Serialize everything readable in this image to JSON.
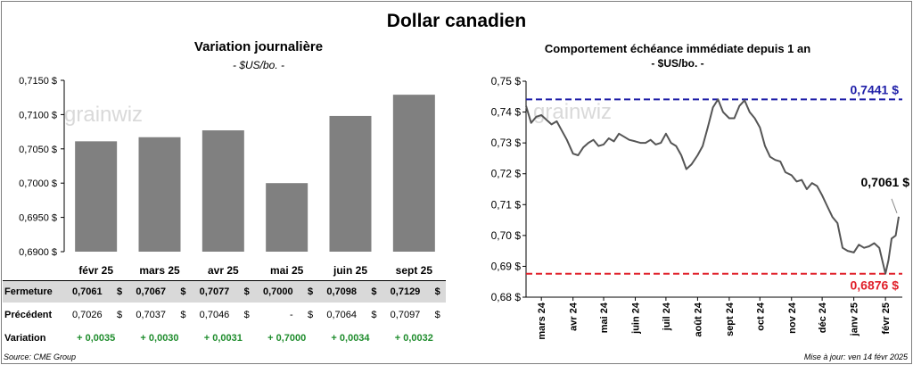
{
  "main_title": "Dollar canadien",
  "left": {
    "title": "Variation journalière",
    "unit": "- $US/bo. -",
    "watermark": "grainwiz",
    "table": {
      "rows": [
        {
          "label": "Fermeture",
          "values": [
            "0,7061",
            "0,7067",
            "0,7077",
            "0,7000",
            "0,7098",
            "0,7129"
          ],
          "style": "bold"
        },
        {
          "label": "Précédent",
          "values": [
            "0,7026",
            "0,7037",
            "0,7046",
            "-",
            "0,7064",
            "0,7097"
          ],
          "style": "normal"
        },
        {
          "label": "Variation",
          "values": [
            "+ 0,0035",
            "+ 0,0030",
            "+ 0,0031",
            "+ 0,7000",
            "+ 0,0034",
            "+ 0,0032"
          ],
          "style": "green"
        }
      ],
      "dollar": "$"
    }
  },
  "right": {
    "title": "Comportement échéance immédiate depuis 1 an",
    "unit": "- $US/bo. -",
    "watermark": "grainwiz",
    "max_label": "0,7441 $",
    "min_label": "0,6876 $",
    "last_label": "0,7061 $"
  },
  "footer": {
    "source": "Source: CME Group",
    "updated": "Mise à jour: ven 14 févr 2025"
  },
  "chart_data": [
    {
      "type": "bar",
      "title": "Variation journalière",
      "unit": "- $US/bo. -",
      "categories": [
        "févr 25",
        "mars 25",
        "avr 25",
        "mai 25",
        "juin 25",
        "sept 25"
      ],
      "values": [
        0.7061,
        0.7067,
        0.7077,
        0.7,
        0.7098,
        0.7129
      ],
      "ylim": [
        0.69,
        0.715
      ],
      "yticks": [
        0.69,
        0.695,
        0.7,
        0.705,
        0.71,
        0.715
      ],
      "ytick_labels": [
        "0,6900 $",
        "0,6950 $",
        "0,7000 $",
        "0,7050 $",
        "0,7100 $",
        "0,7150 $"
      ],
      "grid": false,
      "color": "#808080"
    },
    {
      "type": "line",
      "title": "Comportement échéance immédiate depuis 1 an",
      "unit": "- $US/bo. -",
      "ylim": [
        0.68,
        0.75
      ],
      "yticks": [
        0.68,
        0.69,
        0.7,
        0.71,
        0.72,
        0.73,
        0.74,
        0.75
      ],
      "ytick_labels": [
        "0,68 $",
        "0,69 $",
        "0,70 $",
        "0,71 $",
        "0,72 $",
        "0,73 $",
        "0,74 $",
        "0,75 $"
      ],
      "xtick_labels": [
        "mars 24",
        "avr 24",
        "mai 24",
        "juin 24",
        "juil 24",
        "août 24",
        "sept 24",
        "oct 24",
        "nov 24",
        "déc 24",
        "janv 25",
        "févr 25"
      ],
      "x": [
        "2024-02-15",
        "2024-02-20",
        "2024-02-25",
        "2024-03-01",
        "2024-03-06",
        "2024-03-11",
        "2024-03-16",
        "2024-03-21",
        "2024-03-26",
        "2024-04-01",
        "2024-04-06",
        "2024-04-11",
        "2024-04-16",
        "2024-04-21",
        "2024-04-26",
        "2024-05-01",
        "2024-05-06",
        "2024-05-11",
        "2024-05-16",
        "2024-05-21",
        "2024-05-26",
        "2024-06-01",
        "2024-06-06",
        "2024-06-11",
        "2024-06-16",
        "2024-06-21",
        "2024-06-26",
        "2024-07-01",
        "2024-07-06",
        "2024-07-11",
        "2024-07-16",
        "2024-07-21",
        "2024-07-26",
        "2024-08-01",
        "2024-08-06",
        "2024-08-11",
        "2024-08-16",
        "2024-08-21",
        "2024-08-26",
        "2024-09-01",
        "2024-09-06",
        "2024-09-11",
        "2024-09-16",
        "2024-09-21",
        "2024-09-26",
        "2024-10-01",
        "2024-10-06",
        "2024-10-11",
        "2024-10-16",
        "2024-10-21",
        "2024-10-26",
        "2024-11-01",
        "2024-11-06",
        "2024-11-11",
        "2024-11-16",
        "2024-11-21",
        "2024-11-26",
        "2024-12-01",
        "2024-12-06",
        "2024-12-11",
        "2024-12-16",
        "2024-12-21",
        "2024-12-26",
        "2025-01-01",
        "2025-01-06",
        "2025-01-11",
        "2025-01-16",
        "2025-01-21",
        "2025-01-26",
        "2025-02-01",
        "2025-02-04",
        "2025-02-07",
        "2025-02-11",
        "2025-02-14"
      ],
      "y": [
        0.742,
        0.7365,
        0.7385,
        0.739,
        0.7375,
        0.736,
        0.737,
        0.734,
        0.731,
        0.7265,
        0.726,
        0.7285,
        0.73,
        0.731,
        0.729,
        0.7295,
        0.7315,
        0.7305,
        0.733,
        0.732,
        0.731,
        0.7305,
        0.73,
        0.73,
        0.731,
        0.7295,
        0.73,
        0.733,
        0.73,
        0.729,
        0.726,
        0.7215,
        0.723,
        0.726,
        0.729,
        0.735,
        0.7415,
        0.7441,
        0.74,
        0.738,
        0.738,
        0.742,
        0.7438,
        0.74,
        0.738,
        0.735,
        0.729,
        0.7255,
        0.7245,
        0.724,
        0.7205,
        0.7195,
        0.7175,
        0.718,
        0.715,
        0.717,
        0.716,
        0.713,
        0.7095,
        0.706,
        0.704,
        0.696,
        0.695,
        0.6945,
        0.697,
        0.696,
        0.6965,
        0.6975,
        0.696,
        0.6876,
        0.692,
        0.699,
        0.7,
        0.7061
      ],
      "max_level": 0.7441,
      "min_level": 0.6876,
      "last_value": 0.7061,
      "grid": false,
      "colors": {
        "line": "#555555",
        "max": "#1f1fa8",
        "min": "#e0202a"
      }
    }
  ]
}
